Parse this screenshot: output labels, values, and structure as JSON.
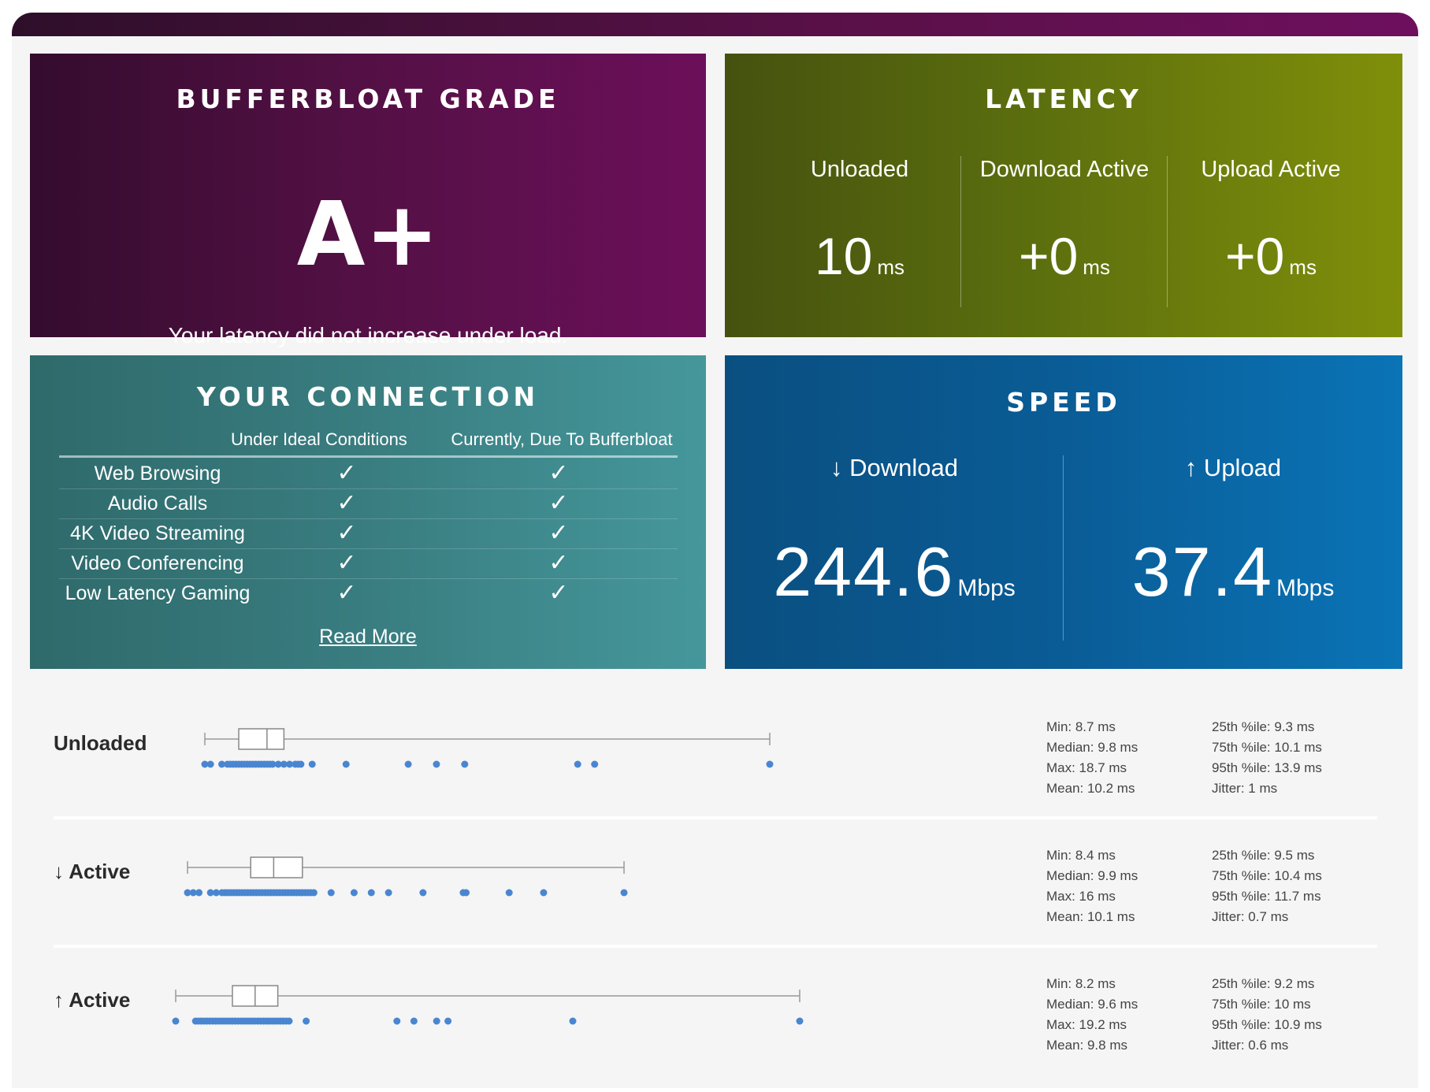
{
  "grade": {
    "title": "BUFFERBLOAT GRADE",
    "grade": "A+",
    "message": "Your latency did not increase under load."
  },
  "latency": {
    "title": "LATENCY",
    "columns": [
      {
        "label": "Unloaded",
        "value": "10",
        "unit": "ms"
      },
      {
        "label": "Download Active",
        "value": "+0",
        "unit": "ms"
      },
      {
        "label": "Upload Active",
        "value": "+0",
        "unit": "ms"
      }
    ]
  },
  "connection": {
    "title": "YOUR CONNECTION",
    "col_ideal": "Under Ideal Conditions",
    "col_current": "Currently, Due To Bufferbloat",
    "rows": [
      {
        "name": "Web Browsing",
        "ideal": "✓",
        "current": "✓"
      },
      {
        "name": "Audio Calls",
        "ideal": "✓",
        "current": "✓"
      },
      {
        "name": "4K Video Streaming",
        "ideal": "✓",
        "current": "✓"
      },
      {
        "name": "Video Conferencing",
        "ideal": "✓",
        "current": "✓"
      },
      {
        "name": "Low Latency Gaming",
        "ideal": "✓",
        "current": "✓"
      }
    ],
    "read_more": "Read More"
  },
  "speed": {
    "title": "SPEED",
    "download": {
      "label": "↓ Download",
      "value": "244.6",
      "unit": "Mbps"
    },
    "upload": {
      "label": "↑ Upload",
      "value": "37.4",
      "unit": "Mbps"
    }
  },
  "stats": [
    {
      "label": "Unloaded",
      "min": 8.7,
      "q1": 9.3,
      "median": 9.8,
      "q3": 10.1,
      "max": 18.7,
      "samples": [
        8.7,
        8.8,
        9.0,
        9.1,
        9.15,
        9.2,
        9.25,
        9.3,
        9.35,
        9.4,
        9.45,
        9.5,
        9.55,
        9.6,
        9.65,
        9.7,
        9.75,
        9.8,
        9.85,
        9.9,
        10.0,
        10.1,
        10.2,
        10.3,
        10.35,
        10.4,
        10.6,
        11.2,
        12.3,
        12.8,
        13.3,
        15.3,
        15.6,
        18.7
      ],
      "text": {
        "min": "Min: 8.7 ms",
        "median": "Median: 9.8 ms",
        "max": "Max: 18.7 ms",
        "mean": "Mean: 10.2 ms",
        "p25": "25th %ile: 9.3 ms",
        "p75": "75th %ile: 10.1 ms",
        "p95": "95th %ile: 13.9 ms",
        "jitter": "Jitter: 1 ms"
      }
    },
    {
      "label": "↓ Active",
      "min": 8.4,
      "q1": 9.5,
      "median": 9.9,
      "q3": 10.4,
      "max": 16,
      "samples": [
        8.4,
        8.5,
        8.6,
        8.8,
        8.9,
        9.0,
        9.05,
        9.1,
        9.15,
        9.2,
        9.25,
        9.3,
        9.35,
        9.4,
        9.45,
        9.5,
        9.55,
        9.6,
        9.65,
        9.7,
        9.75,
        9.8,
        9.85,
        9.9,
        9.95,
        10.0,
        10.05,
        10.1,
        10.15,
        10.2,
        10.25,
        10.3,
        10.35,
        10.4,
        10.45,
        10.5,
        10.55,
        10.6,
        10.9,
        11.3,
        11.6,
        11.9,
        12.5,
        13.2,
        13.25,
        14.0,
        14.6,
        16.0
      ],
      "text": {
        "min": "Min: 8.4 ms",
        "median": "Median: 9.9 ms",
        "max": "Max: 16 ms",
        "mean": "Mean: 10.1 ms",
        "p25": "25th %ile: 9.5 ms",
        "p75": "75th %ile: 10.4 ms",
        "p95": "95th %ile: 11.7 ms",
        "jitter": "Jitter: 0.7 ms"
      }
    },
    {
      "label": "↑ Active",
      "min": 8.2,
      "q1": 9.2,
      "median": 9.6,
      "q3": 10,
      "max": 19.2,
      "samples": [
        8.2,
        8.55,
        8.6,
        8.65,
        8.7,
        8.75,
        8.8,
        8.85,
        8.9,
        8.95,
        9.0,
        9.05,
        9.1,
        9.15,
        9.2,
        9.25,
        9.3,
        9.35,
        9.4,
        9.45,
        9.5,
        9.55,
        9.6,
        9.65,
        9.7,
        9.75,
        9.8,
        9.85,
        9.9,
        9.95,
        10.0,
        10.05,
        10.1,
        10.15,
        10.2,
        10.5,
        12.1,
        12.4,
        12.8,
        13.0,
        15.2,
        19.2
      ],
      "text": {
        "min": "Min: 8.2 ms",
        "median": "Median: 9.6 ms",
        "max": "Max: 19.2 ms",
        "mean": "Mean: 9.8 ms",
        "p25": "25th %ile: 9.2 ms",
        "p75": "75th %ile: 10 ms",
        "p95": "95th %ile: 10.9 ms",
        "jitter": "Jitter: 0.6 ms"
      }
    }
  ]
}
